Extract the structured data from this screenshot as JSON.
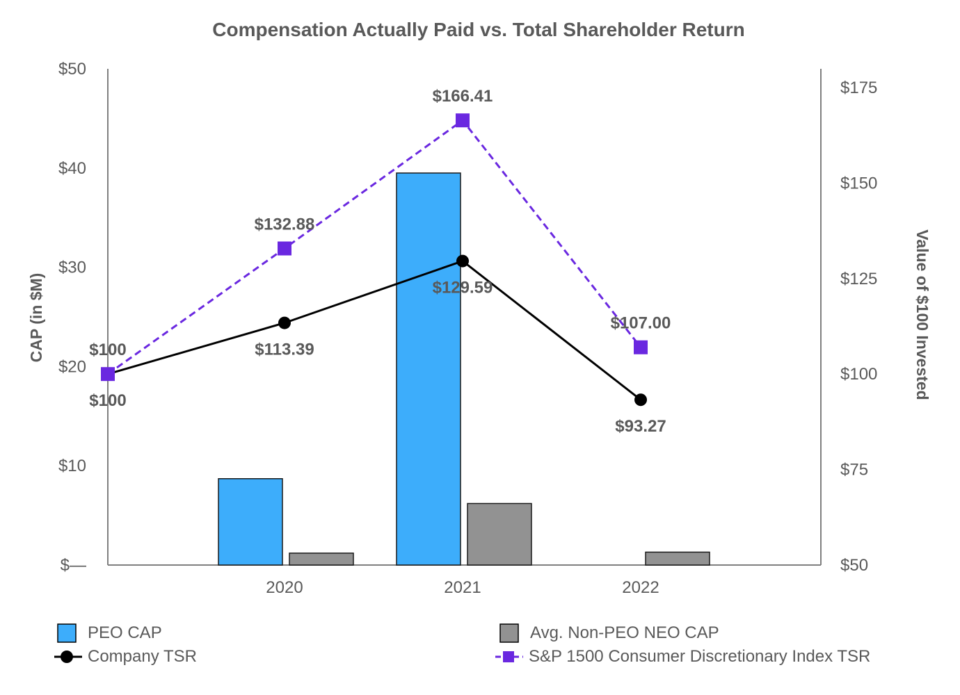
{
  "chart_data": {
    "type": "bar+line",
    "title": "Compensation Actually Paid vs. Total Shareholder Return",
    "categories": [
      "2020",
      "2021",
      "2022"
    ],
    "y_left": {
      "label": "CAP (in $M)",
      "ylim": [
        0,
        50
      ],
      "ticks": [
        {
          "value": 0,
          "label": "$—"
        },
        {
          "value": 10,
          "label": "$10"
        },
        {
          "value": 20,
          "label": "$20"
        },
        {
          "value": 30,
          "label": "$30"
        },
        {
          "value": 40,
          "label": "$40"
        },
        {
          "value": 50,
          "label": "$50"
        }
      ]
    },
    "y_right": {
      "label": "Value of $100 Invested",
      "ylim": [
        50,
        180
      ],
      "ticks": [
        {
          "value": 50,
          "label": "$50"
        },
        {
          "value": 75,
          "label": "$75"
        },
        {
          "value": 100,
          "label": "$100"
        },
        {
          "value": 125,
          "label": "$125"
        },
        {
          "value": 150,
          "label": "$150"
        },
        {
          "value": 175,
          "label": "$175"
        }
      ]
    },
    "bar_series": [
      {
        "name": "PEO CAP",
        "color": "#3DADFB",
        "values": [
          8.7,
          39.5,
          0
        ]
      },
      {
        "name": "Avg. Non-PEO NEO CAP",
        "color": "#929292",
        "values": [
          1.2,
          6.2,
          1.3
        ]
      }
    ],
    "line_series": [
      {
        "name": "Company TSR",
        "color": "#000000",
        "style": "solid",
        "marker": "circle",
        "x": [
          "start",
          "2020",
          "2021",
          "2022"
        ],
        "values": [
          100,
          113.39,
          129.59,
          93.27
        ],
        "labels": [
          "$100",
          "$113.39",
          "$129.59",
          "$93.27"
        ]
      },
      {
        "name": "S&P 1500 Consumer Discretionary Index TSR",
        "color": "#6A28E0",
        "style": "dashed",
        "marker": "square",
        "x": [
          "start",
          "2020",
          "2021",
          "2022"
        ],
        "values": [
          100,
          132.88,
          166.41,
          107.0
        ],
        "labels": [
          "$100",
          "$132.88",
          "$166.41",
          "$107.00"
        ]
      }
    ],
    "legend": {
      "position": "bottom",
      "items": [
        {
          "name": "PEO CAP",
          "kind": "bar",
          "color": "#3DADFB"
        },
        {
          "name": "Avg. Non-PEO NEO CAP",
          "kind": "bar",
          "color": "#929292"
        },
        {
          "name": "Company TSR",
          "kind": "line-circle",
          "color": "#000000"
        },
        {
          "name": "S&P 1500 Consumer Discretionary Index TSR",
          "kind": "line-square",
          "color": "#6A28E0"
        }
      ]
    }
  }
}
